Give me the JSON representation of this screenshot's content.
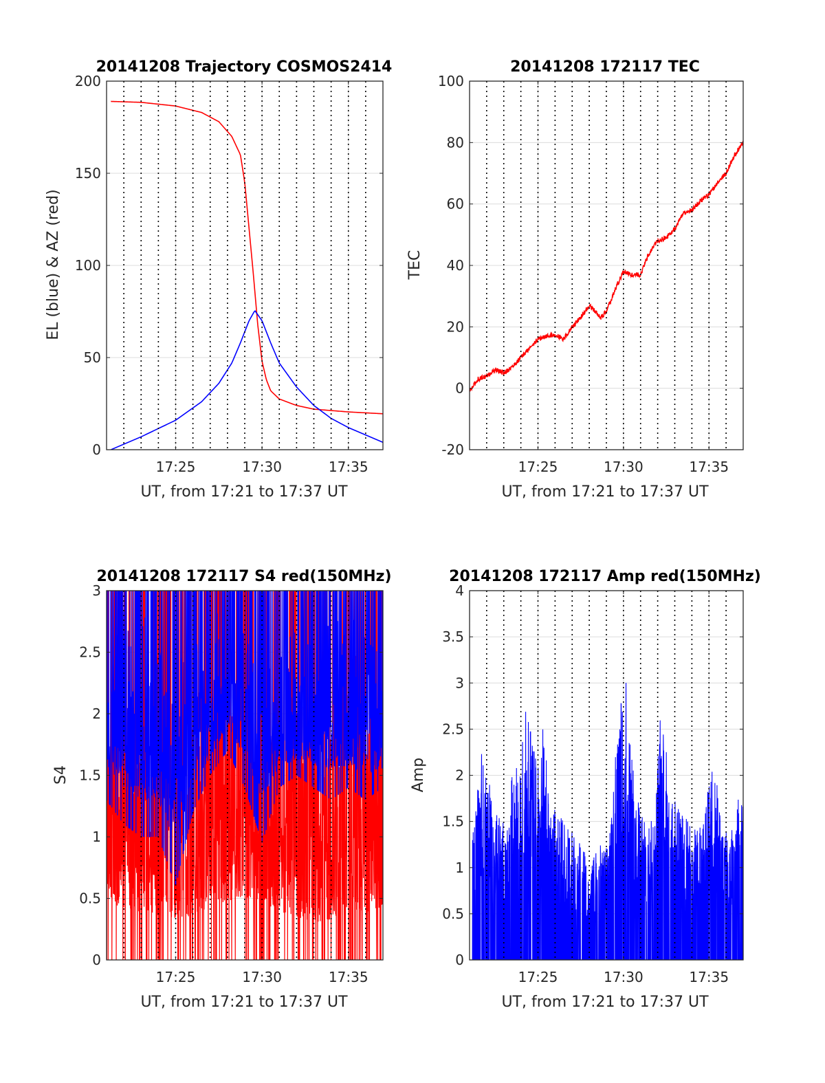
{
  "chart_data": [
    {
      "type": "line",
      "title": "20141208 Trajectory COSMOS2414",
      "xlabel": "UT, from 17:21 to 17:37 UT",
      "ylabel": "EL (blue) & AZ (red)",
      "xlim": [
        "17:21",
        "17:37"
      ],
      "xticks": [
        "17:25",
        "17:30",
        "17:35"
      ],
      "ylim": [
        0,
        200
      ],
      "yticks": [
        "0",
        "50",
        "100",
        "150",
        "200"
      ],
      "grid": true,
      "vlines": [
        "17:22",
        "17:23",
        "17:24",
        "17:25",
        "17:26",
        "17:27",
        "17:28",
        "17:29",
        "17:30",
        "17:31",
        "17:32",
        "17:33",
        "17:34",
        "17:35",
        "17:36"
      ],
      "series": [
        {
          "color": "#ff0000",
          "x": [
            "17:21:15",
            "17:23:00",
            "17:25:00",
            "17:26:30",
            "17:27:30",
            "17:28:15",
            "17:28:45",
            "17:29:00",
            "17:29:15",
            "17:29:30",
            "17:29:45",
            "17:30:00",
            "17:30:15",
            "17:30:30",
            "17:31:00",
            "17:32:00",
            "17:33:00",
            "17:35:00",
            "17:37:00"
          ],
          "values": [
            189,
            188.5,
            186.5,
            183,
            178,
            170,
            160,
            145,
            120,
            95,
            68,
            48,
            38,
            32,
            27.5,
            24,
            22,
            20.5,
            19.5
          ]
        },
        {
          "color": "#0000ff",
          "x": [
            "17:21:15",
            "17:23:00",
            "17:25:00",
            "17:26:30",
            "17:27:30",
            "17:28:15",
            "17:28:45",
            "17:29:15",
            "17:29:35",
            "17:30:00",
            "17:30:30",
            "17:31:00",
            "17:32:00",
            "17:33:00",
            "17:34:00",
            "17:35:00",
            "17:36:00",
            "17:37:00"
          ],
          "values": [
            0,
            7,
            16,
            26,
            36,
            47,
            58,
            70,
            75.5,
            70,
            58,
            47,
            34,
            24,
            17,
            12,
            8,
            4
          ]
        }
      ]
    },
    {
      "type": "line",
      "title": "20141208 172117 TEC",
      "xlabel": "UT, from 17:21 to 17:37 UT",
      "ylabel": "TEC",
      "xlim": [
        "17:21",
        "17:37"
      ],
      "xticks": [
        "17:25",
        "17:30",
        "17:35"
      ],
      "ylim": [
        -20,
        100
      ],
      "yticks": [
        "-20",
        "0",
        "20",
        "40",
        "60",
        "80",
        "100"
      ],
      "grid": true,
      "vlines": [
        "17:22",
        "17:23",
        "17:24",
        "17:25",
        "17:26",
        "17:27",
        "17:28",
        "17:29",
        "17:30",
        "17:31",
        "17:32",
        "17:33",
        "17:34",
        "17:35",
        "17:36"
      ],
      "series": [
        {
          "color": "#ff0000",
          "x": [
            "17:21:00",
            "17:21:30",
            "17:22:00",
            "17:22:30",
            "17:23:00",
            "17:23:30",
            "17:24:00",
            "17:24:30",
            "17:25:00",
            "17:25:30",
            "17:26:00",
            "17:26:30",
            "17:27:00",
            "17:27:30",
            "17:28:00",
            "17:28:20",
            "17:28:40",
            "17:29:00",
            "17:29:30",
            "17:30:00",
            "17:30:30",
            "17:31:00",
            "17:31:30",
            "17:32:00",
            "17:32:30",
            "17:33:00",
            "17:33:30",
            "17:34:00",
            "17:34:30",
            "17:35:00",
            "17:35:30",
            "17:36:00",
            "17:36:30",
            "17:37:00"
          ],
          "values": [
            -1,
            3,
            4,
            6,
            5,
            7,
            10,
            13,
            16,
            17,
            17.5,
            16,
            20,
            23,
            27,
            25,
            23,
            25,
            32,
            38,
            37,
            37,
            44,
            48,
            49,
            52,
            57,
            58,
            61,
            63,
            67,
            70,
            76,
            80
          ]
        }
      ]
    },
    {
      "type": "line",
      "title": "20141208 172117 S4 red(150MHz)",
      "xlabel": "UT, from 17:21 to 17:37 UT",
      "ylabel": "S4",
      "xlim": [
        "17:21",
        "17:37"
      ],
      "xticks": [
        "17:25",
        "17:30",
        "17:35"
      ],
      "ylim": [
        0,
        3
      ],
      "yticks": [
        "0",
        "0.5",
        "1",
        "1.5",
        "2",
        "2.5",
        "3"
      ],
      "grid": true,
      "vlines": [
        "17:22",
        "17:23",
        "17:24",
        "17:25",
        "17:26",
        "17:27",
        "17:28",
        "17:29",
        "17:30",
        "17:31",
        "17:32",
        "17:33",
        "17:34",
        "17:35",
        "17:36"
      ],
      "series": [
        {
          "color": "#ff0000",
          "x": [
            "17:21",
            "17:22",
            "17:23",
            "17:24",
            "17:25",
            "17:26",
            "17:27",
            "17:28",
            "17:29",
            "17:30",
            "17:31",
            "17:32",
            "17:33",
            "17:34",
            "17:35",
            "17:36",
            "17:37"
          ],
          "values": [
            1.5,
            1.4,
            1.3,
            1.2,
            1.1,
            1.2,
            1.4,
            1.6,
            1.7,
            1.6,
            1.3,
            1.1,
            1.0,
            1.1,
            1.2,
            1.3,
            1.4
          ],
          "note_range_low": [
            0,
            0,
            0,
            0,
            0,
            0,
            0,
            0,
            0,
            0,
            0,
            0,
            0,
            0,
            0,
            0,
            0
          ],
          "note_range_high": [
            3,
            3,
            3,
            3,
            3,
            3,
            3,
            3,
            3,
            3,
            3,
            3,
            3,
            3,
            3,
            3,
            3
          ]
        },
        {
          "color": "#0000ff",
          "x": [
            "17:21",
            "17:22",
            "17:23",
            "17:24",
            "17:25",
            "17:26",
            "17:27",
            "17:28",
            "17:29",
            "17:30",
            "17:31",
            "17:32",
            "17:33",
            "17:34",
            "17:35",
            "17:36",
            "17:37"
          ],
          "values": [
            2.2,
            2.1,
            2.0,
            1.9,
            1.8,
            1.9,
            2.0,
            2.2,
            2.3,
            2.1,
            2.0,
            1.9,
            2.0,
            2.1,
            2.0,
            2.0,
            1.9
          ],
          "note_range_low": [
            1.3,
            1.1,
            1.0,
            1.0,
            0.6,
            1.2,
            1.5,
            1.7,
            1.4,
            0.95,
            1.4,
            1.5,
            1.4,
            1.3,
            1.4,
            1.3,
            1.4
          ],
          "note_range_high": [
            3,
            3,
            3,
            3,
            3,
            3,
            3,
            3,
            3,
            3,
            3,
            3,
            3,
            3,
            3,
            3,
            3
          ]
        }
      ]
    },
    {
      "type": "line",
      "title": "20141208 172117 Amp red(150MHz)",
      "xlabel": "UT, from 17:21 to 17:37 UT",
      "ylabel": "Amp",
      "xlim": [
        "17:21",
        "17:37"
      ],
      "xticks": [
        "17:25",
        "17:30",
        "17:35"
      ],
      "ylim": [
        0,
        4
      ],
      "yticks": [
        "0",
        "0.5",
        "1",
        "1.5",
        "2",
        "2.5",
        "3",
        "3.5",
        "4"
      ],
      "grid": true,
      "vlines": [
        "17:22",
        "17:23",
        "17:24",
        "17:25",
        "17:26",
        "17:27",
        "17:28",
        "17:29",
        "17:30",
        "17:31",
        "17:32",
        "17:33",
        "17:34",
        "17:35",
        "17:36"
      ],
      "series": [
        {
          "color": "#0000ff",
          "x": [
            "17:21:10",
            "17:21:45",
            "17:22:15",
            "17:23:00",
            "17:23:30",
            "17:24:00",
            "17:24:20",
            "17:24:40",
            "17:25:00",
            "17:25:20",
            "17:25:40",
            "17:26:30",
            "17:27:30",
            "17:28:00",
            "17:28:30",
            "17:29:15",
            "17:29:40",
            "17:30:10",
            "17:30:40",
            "17:31:10",
            "17:31:50",
            "17:32:15",
            "17:32:40",
            "17:33:30",
            "17:34:00",
            "17:34:40",
            "17:35:15",
            "17:35:45",
            "17:36:15",
            "17:36:45",
            "17:37:00"
          ],
          "values": [
            1.3,
            2.4,
            1.8,
            1.5,
            2.0,
            2.3,
            2.85,
            2.5,
            2.2,
            2.55,
            1.7,
            1.5,
            1.3,
            1.0,
            1.2,
            1.4,
            2.6,
            3.1,
            1.8,
            1.6,
            1.5,
            3.0,
            1.8,
            1.6,
            1.4,
            1.5,
            2.2,
            1.5,
            1.3,
            1.9,
            1.8
          ]
        }
      ]
    }
  ]
}
